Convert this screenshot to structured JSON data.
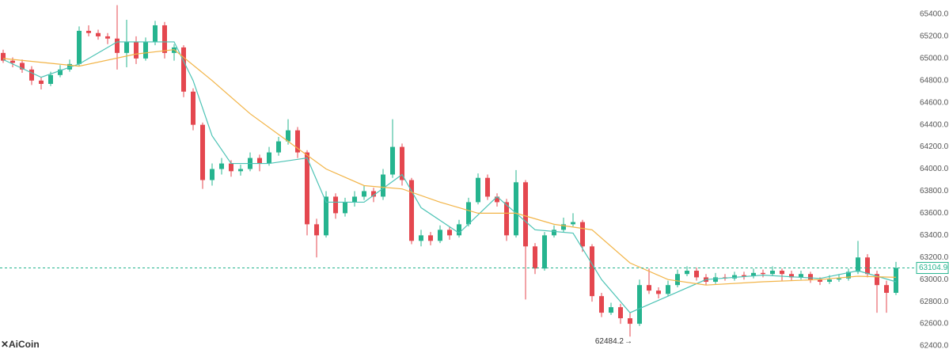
{
  "chart_data": {
    "type": "candlestick",
    "watermark": "AiCoin",
    "up_color": "#26b48f",
    "down_color": "#e4474f",
    "ylim": [
      62400,
      65400
    ],
    "yticks": [
      {
        "value": 62400,
        "label": "62400.0"
      },
      {
        "value": 62600,
        "label": "62600.0"
      },
      {
        "value": 62800,
        "label": "62800.0"
      },
      {
        "value": 63000,
        "label": "63000.0"
      },
      {
        "value": 63200,
        "label": "63200.0"
      },
      {
        "value": 63400,
        "label": "63400.0"
      },
      {
        "value": 63600,
        "label": "63600.0"
      },
      {
        "value": 63800,
        "label": "63800.0"
      },
      {
        "value": 64000,
        "label": "64000.0"
      },
      {
        "value": 64200,
        "label": "64200.0"
      },
      {
        "value": 64400,
        "label": "64400.0"
      },
      {
        "value": 64600,
        "label": "64600.0"
      },
      {
        "value": 64800,
        "label": "64800.0"
      },
      {
        "value": 65000,
        "label": "65000.0"
      },
      {
        "value": 65200,
        "label": "65200.0"
      },
      {
        "value": 65400,
        "label": "65400.0"
      }
    ],
    "grid": false,
    "values": [
      [
        65050,
        65080,
        64960,
        64980
      ],
      [
        64980,
        65010,
        64920,
        64960
      ],
      [
        64960,
        64990,
        64870,
        64900
      ],
      [
        64900,
        64930,
        64760,
        64800
      ],
      [
        64800,
        64830,
        64720,
        64770
      ],
      [
        64770,
        64880,
        64750,
        64850
      ],
      [
        64850,
        64940,
        64830,
        64900
      ],
      [
        64900,
        64990,
        64880,
        64950
      ],
      [
        64950,
        65290,
        64930,
        65250
      ],
      [
        65250,
        65300,
        65200,
        65230
      ],
      [
        65230,
        65260,
        65170,
        65200
      ],
      [
        65200,
        65230,
        65130,
        65180
      ],
      [
        65180,
        65482.7,
        64900,
        65050
      ],
      [
        65050,
        65350,
        64920,
        65150
      ],
      [
        65150,
        65200,
        64950,
        65000
      ],
      [
        65000,
        65190,
        64980,
        65150
      ],
      [
        65150,
        65340,
        65120,
        65300
      ],
      [
        65300,
        65330,
        65000,
        65050
      ],
      [
        65050,
        65130,
        64980,
        65100
      ],
      [
        65100,
        65120,
        64650,
        64700
      ],
      [
        64700,
        64730,
        64350,
        64400
      ],
      [
        64400,
        64420,
        63820,
        63900
      ],
      [
        63900,
        64050,
        63850,
        64000
      ],
      [
        64000,
        64100,
        63950,
        64050
      ],
      [
        64050,
        64080,
        63930,
        63980
      ],
      [
        63980,
        64040,
        63940,
        64000
      ],
      [
        64000,
        64150,
        63980,
        64100
      ],
      [
        64100,
        64130,
        63980,
        64050
      ],
      [
        64050,
        64200,
        64030,
        64150
      ],
      [
        64150,
        64290,
        64120,
        64250
      ],
      [
        64250,
        64450,
        64220,
        64350
      ],
      [
        64350,
        64380,
        64100,
        64150
      ],
      [
        64150,
        64170,
        63400,
        63500
      ],
      [
        63500,
        63550,
        63200,
        63400
      ],
      [
        63400,
        63800,
        63380,
        63750
      ],
      [
        63750,
        63780,
        63550,
        63600
      ],
      [
        63600,
        63740,
        63570,
        63700
      ],
      [
        63700,
        63800,
        63660,
        63750
      ],
      [
        63750,
        63850,
        63720,
        63800
      ],
      [
        63800,
        63830,
        63700,
        63750
      ],
      [
        63750,
        64000,
        63720,
        63950
      ],
      [
        63950,
        64450,
        63920,
        64200
      ],
      [
        64200,
        64230,
        63850,
        63900
      ],
      [
        63900,
        63920,
        63320,
        63350
      ],
      [
        63350,
        63450,
        63300,
        63400
      ],
      [
        63400,
        63430,
        63310,
        63350
      ],
      [
        63350,
        63490,
        63330,
        63450
      ],
      [
        63450,
        63480,
        63360,
        63400
      ],
      [
        63400,
        63540,
        63380,
        63500
      ],
      [
        63500,
        63740,
        63480,
        63700
      ],
      [
        63700,
        63960,
        63680,
        63920
      ],
      [
        63920,
        63950,
        63720,
        63750
      ],
      [
        63750,
        63780,
        63660,
        63700
      ],
      [
        63700,
        63730,
        63350,
        63400
      ],
      [
        63400,
        63990,
        63380,
        63880
      ],
      [
        63880,
        63900,
        62820,
        63300
      ],
      [
        63300,
        63330,
        63050,
        63100
      ],
      [
        63100,
        63430,
        63080,
        63400
      ],
      [
        63400,
        63490,
        63380,
        63450
      ],
      [
        63450,
        63560,
        63430,
        63500
      ],
      [
        63500,
        63600,
        63480,
        63520
      ],
      [
        63520,
        63540,
        63250,
        63300
      ],
      [
        63300,
        63320,
        62800,
        62850
      ],
      [
        62850,
        62880,
        62660,
        62700
      ],
      [
        62700,
        62790,
        62680,
        62750
      ],
      [
        62750,
        62780,
        62600,
        62650
      ],
      [
        62650,
        62700,
        62484.2,
        62600
      ],
      [
        62600,
        63000,
        62580,
        62950
      ],
      [
        62950,
        63100,
        62870,
        62900
      ],
      [
        62900,
        62930,
        62830,
        62870
      ],
      [
        62870,
        62990,
        62850,
        62950
      ],
      [
        62950,
        63090,
        62930,
        63050
      ],
      [
        63050,
        63120,
        63030,
        63080
      ],
      [
        63080,
        63110,
        62990,
        63020
      ],
      [
        63020,
        63050,
        62950,
        62980
      ],
      [
        62980,
        63060,
        62960,
        63020
      ],
      [
        63020,
        63050,
        62990,
        63010
      ],
      [
        63010,
        63070,
        62990,
        63040
      ],
      [
        63040,
        63070,
        63000,
        63030
      ],
      [
        63030,
        63100,
        63010,
        63060
      ],
      [
        63060,
        63090,
        63020,
        63050
      ],
      [
        63050,
        63120,
        63030,
        63080
      ],
      [
        63080,
        63100,
        62990,
        63050
      ],
      [
        63050,
        63080,
        62990,
        63020
      ],
      [
        63020,
        63080,
        63000,
        63050
      ],
      [
        63050,
        63070,
        62970,
        63000
      ],
      [
        63000,
        63020,
        62950,
        62980
      ],
      [
        62980,
        63040,
        62960,
        63000
      ],
      [
        63000,
        63050,
        62980,
        63010
      ],
      [
        63010,
        63100,
        62990,
        63070
      ],
      [
        63070,
        63350,
        63050,
        63200
      ],
      [
        63200,
        63230,
        63020,
        63050
      ],
      [
        63050,
        63080,
        62700,
        62950
      ],
      [
        62950,
        62990,
        62700,
        62880
      ],
      [
        62880,
        63160,
        62860,
        63104.9
      ]
    ],
    "lines": [
      {
        "color": "#4cc3b5",
        "x": [
          0,
          4,
          8,
          12,
          16,
          18,
          20,
          22,
          24,
          28,
          32,
          34,
          38,
          42,
          44,
          48,
          52,
          56,
          60,
          63,
          66,
          70,
          74,
          80,
          86,
          90,
          94
        ],
        "values": [
          64990,
          64830,
          64950,
          65150,
          65150,
          65150,
          64800,
          64300,
          64050,
          64050,
          64100,
          63700,
          63700,
          63950,
          63650,
          63420,
          63750,
          63450,
          63420,
          63000,
          62700,
          62850,
          63000,
          63040,
          63010,
          63080,
          62980
        ]
      },
      {
        "color": "#f2b447",
        "x": [
          0,
          8,
          14,
          18,
          22,
          26,
          30,
          34,
          38,
          42,
          46,
          50,
          54,
          58,
          62,
          66,
          70,
          74,
          80,
          86,
          90,
          94
        ],
        "values": [
          65000,
          64930,
          65040,
          65080,
          64800,
          64500,
          64250,
          64000,
          63850,
          63820,
          63700,
          63600,
          63600,
          63500,
          63450,
          63150,
          63000,
          62950,
          62980,
          63000,
          63030,
          63020
        ]
      }
    ]
  }
}
